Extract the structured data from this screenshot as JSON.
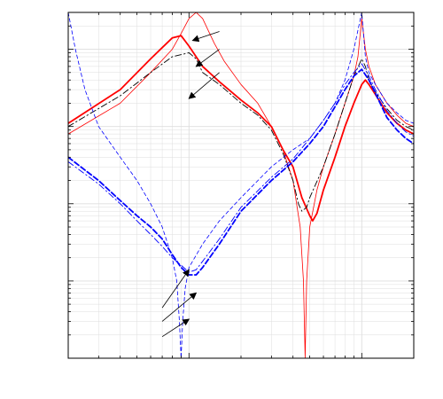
{
  "chart_data": {
    "type": "line",
    "title": "",
    "xlabel": "",
    "ylabel": "",
    "x_scale": "log",
    "y_scale": "log",
    "xlim": [
      20,
      2000
    ],
    "ylim": [
      0.001,
      30
    ],
    "grid": true,
    "legend": "none",
    "xticks": [
      100,
      1000
    ],
    "yticks": [
      0.01,
      0.1,
      1,
      10
    ],
    "colors": {
      "red": "#ff0000",
      "blue": "#0000ff",
      "black": "#000000",
      "grid": "#dddddd"
    },
    "series": [
      {
        "style": "red-thick-solid",
        "points": [
          [
            20,
            1.1
          ],
          [
            40,
            3.0
          ],
          [
            60,
            7.5
          ],
          [
            70,
            10.5
          ],
          [
            80,
            14.0
          ],
          [
            90,
            15.0
          ],
          [
            100,
            11.0
          ],
          [
            120,
            6.0
          ],
          [
            150,
            3.8
          ],
          [
            200,
            2.2
          ],
          [
            250,
            1.5
          ],
          [
            300,
            1.0
          ],
          [
            350,
            0.5
          ],
          [
            400,
            0.3
          ],
          [
            450,
            0.12
          ],
          [
            500,
            0.07
          ],
          [
            520,
            0.06
          ],
          [
            550,
            0.075
          ],
          [
            600,
            0.15
          ],
          [
            700,
            0.4
          ],
          [
            800,
            1.0
          ],
          [
            900,
            2.0
          ],
          [
            1000,
            3.5
          ],
          [
            1050,
            4.0
          ],
          [
            1100,
            3.5
          ],
          [
            1200,
            2.6
          ],
          [
            1400,
            1.5
          ],
          [
            1600,
            1.1
          ],
          [
            1800,
            0.9
          ],
          [
            2000,
            0.8
          ]
        ]
      },
      {
        "style": "red-thin-solid",
        "points": [
          [
            20,
            0.8
          ],
          [
            40,
            2.0
          ],
          [
            60,
            5.0
          ],
          [
            80,
            10.0
          ],
          [
            90,
            16.0
          ],
          [
            100,
            25.0
          ],
          [
            110,
            30.0
          ],
          [
            120,
            25.0
          ],
          [
            140,
            12.0
          ],
          [
            160,
            7.0
          ],
          [
            200,
            3.5
          ],
          [
            250,
            2.0
          ],
          [
            300,
            1.0
          ],
          [
            350,
            0.5
          ],
          [
            400,
            0.2
          ],
          [
            440,
            0.05
          ],
          [
            460,
            0.01
          ],
          [
            470,
            0.001
          ],
          [
            480,
            0.01
          ],
          [
            500,
            0.05
          ],
          [
            550,
            0.15
          ],
          [
            600,
            0.3
          ],
          [
            700,
            0.8
          ],
          [
            800,
            2.0
          ],
          [
            900,
            4.5
          ],
          [
            950,
            8.0
          ],
          [
            1000,
            25.0
          ],
          [
            1050,
            10.0
          ],
          [
            1100,
            6.0
          ],
          [
            1200,
            3.5
          ],
          [
            1400,
            2.0
          ],
          [
            1600,
            1.4
          ],
          [
            1800,
            1.1
          ],
          [
            2000,
            1.0
          ]
        ]
      },
      {
        "style": "black-dashdot",
        "points": [
          [
            20,
            1.0
          ],
          [
            40,
            2.5
          ],
          [
            60,
            5.0
          ],
          [
            80,
            8.0
          ],
          [
            100,
            9.0
          ],
          [
            110,
            7.5
          ],
          [
            120,
            5.0
          ],
          [
            150,
            3.5
          ],
          [
            200,
            2.0
          ],
          [
            250,
            1.4
          ],
          [
            300,
            0.9
          ],
          [
            350,
            0.45
          ],
          [
            400,
            0.2
          ],
          [
            430,
            0.1
          ],
          [
            450,
            0.08
          ],
          [
            480,
            0.09
          ],
          [
            500,
            0.12
          ],
          [
            600,
            0.3
          ],
          [
            700,
            0.8
          ],
          [
            800,
            2.0
          ],
          [
            900,
            4.5
          ],
          [
            1000,
            7.5
          ],
          [
            1050,
            6.0
          ],
          [
            1100,
            4.0
          ],
          [
            1200,
            2.8
          ],
          [
            1400,
            1.7
          ],
          [
            1600,
            1.2
          ],
          [
            1800,
            1.0
          ],
          [
            2000,
            0.9
          ]
        ]
      },
      {
        "style": "blue-thick-dashed",
        "points": [
          [
            20,
            0.4
          ],
          [
            30,
            0.2
          ],
          [
            40,
            0.11
          ],
          [
            50,
            0.07
          ],
          [
            60,
            0.05
          ],
          [
            70,
            0.035
          ],
          [
            80,
            0.022
          ],
          [
            90,
            0.015
          ],
          [
            100,
            0.012
          ],
          [
            110,
            0.012
          ],
          [
            120,
            0.015
          ],
          [
            150,
            0.03
          ],
          [
            200,
            0.08
          ],
          [
            300,
            0.2
          ],
          [
            400,
            0.35
          ],
          [
            500,
            0.6
          ],
          [
            600,
            1.0
          ],
          [
            700,
            1.8
          ],
          [
            800,
            3.0
          ],
          [
            900,
            4.5
          ],
          [
            1000,
            5.5
          ],
          [
            1100,
            4.0
          ],
          [
            1200,
            2.7
          ],
          [
            1400,
            1.3
          ],
          [
            1600,
            0.9
          ],
          [
            1800,
            0.7
          ],
          [
            2000,
            0.6
          ]
        ]
      },
      {
        "style": "blue-dashdot",
        "points": [
          [
            20,
            0.35
          ],
          [
            30,
            0.18
          ],
          [
            40,
            0.1
          ],
          [
            50,
            0.06
          ],
          [
            60,
            0.04
          ],
          [
            70,
            0.028
          ],
          [
            80,
            0.02
          ],
          [
            90,
            0.016
          ],
          [
            100,
            0.013
          ],
          [
            110,
            0.014
          ],
          [
            120,
            0.018
          ],
          [
            150,
            0.035
          ],
          [
            200,
            0.09
          ],
          [
            300,
            0.22
          ],
          [
            400,
            0.38
          ],
          [
            500,
            0.7
          ],
          [
            600,
            1.2
          ],
          [
            700,
            2.0
          ],
          [
            800,
            3.5
          ],
          [
            900,
            5.0
          ],
          [
            1000,
            6.5
          ],
          [
            1100,
            4.5
          ],
          [
            1200,
            3.0
          ],
          [
            1400,
            1.6
          ],
          [
            1600,
            1.1
          ],
          [
            1800,
            0.85
          ],
          [
            2000,
            0.75
          ]
        ]
      },
      {
        "style": "blue-thin-dashed",
        "points": [
          [
            20,
            30.0
          ],
          [
            22,
            10.0
          ],
          [
            25,
            3.0
          ],
          [
            30,
            1.0
          ],
          [
            40,
            0.4
          ],
          [
            50,
            0.2
          ],
          [
            60,
            0.1
          ],
          [
            70,
            0.05
          ],
          [
            80,
            0.02
          ],
          [
            85,
            0.01
          ],
          [
            88,
            0.003
          ],
          [
            90,
            0.001
          ],
          [
            92,
            0.003
          ],
          [
            95,
            0.008
          ],
          [
            100,
            0.015
          ],
          [
            120,
            0.03
          ],
          [
            150,
            0.06
          ],
          [
            200,
            0.12
          ],
          [
            300,
            0.3
          ],
          [
            400,
            0.5
          ],
          [
            500,
            0.7
          ],
          [
            600,
            1.2
          ],
          [
            700,
            2.0
          ],
          [
            800,
            4.0
          ],
          [
            900,
            10.0
          ],
          [
            1000,
            30.0
          ],
          [
            1050,
            8.0
          ],
          [
            1100,
            5.0
          ],
          [
            1200,
            3.5
          ],
          [
            1400,
            2.0
          ],
          [
            1600,
            1.5
          ],
          [
            1800,
            1.2
          ],
          [
            2000,
            1.1
          ]
        ]
      }
    ],
    "annotations": [
      {
        "name": "arrow-upper-1",
        "tail": [
          150,
          17.0
        ],
        "head": [
          105,
          13.0
        ]
      },
      {
        "name": "arrow-upper-2",
        "tail": [
          150,
          10.0
        ],
        "head": [
          110,
          6.0
        ]
      },
      {
        "name": "arrow-upper-3",
        "tail": [
          150,
          5.0
        ],
        "head": [
          100,
          2.3
        ]
      },
      {
        "name": "arrow-lower-1",
        "tail": [
          70,
          0.0045
        ],
        "head": [
          100,
          0.014
        ]
      },
      {
        "name": "arrow-lower-2",
        "tail": [
          70,
          0.003
        ],
        "head": [
          110,
          0.007
        ]
      },
      {
        "name": "arrow-lower-3",
        "tail": [
          70,
          0.0019
        ],
        "head": [
          100,
          0.0032
        ]
      }
    ]
  }
}
